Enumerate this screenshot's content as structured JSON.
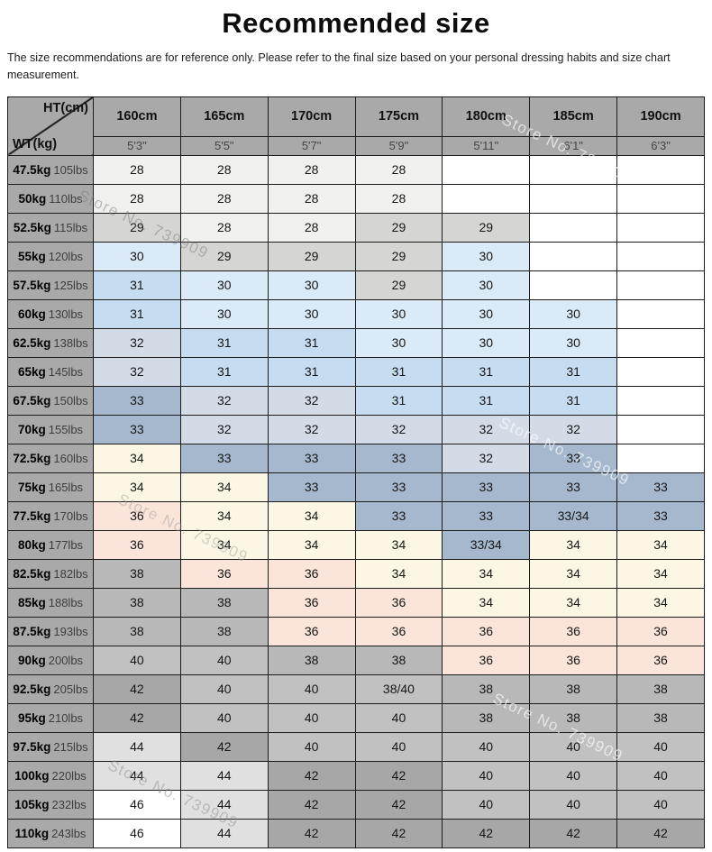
{
  "chart_data": {
    "type": "table",
    "title": "Recommended size",
    "note": "The size recommendations are for reference only. Please refer to the final size based on your personal dressing habits and size chart measurement.",
    "watermark": "Store No. 739909",
    "corner": {
      "top_label": "HT(cm)",
      "bottom_label": "WT(kg)"
    },
    "height_cols": [
      {
        "cm": "160cm",
        "ft": "5'3\""
      },
      {
        "cm": "165cm",
        "ft": "5'5\""
      },
      {
        "cm": "170cm",
        "ft": "5'7\""
      },
      {
        "cm": "175cm",
        "ft": "5'9\""
      },
      {
        "cm": "180cm",
        "ft": "5'11\""
      },
      {
        "cm": "185cm",
        "ft": "6'1\""
      },
      {
        "cm": "190cm",
        "ft": "6'3\""
      }
    ],
    "rows": [
      {
        "kg": "47.5kg",
        "lbs": "105lbs",
        "sizes": [
          "28",
          "28",
          "28",
          "28",
          "",
          "",
          ""
        ]
      },
      {
        "kg": "50kg",
        "lbs": "110lbs",
        "sizes": [
          "28",
          "28",
          "28",
          "28",
          "",
          "",
          ""
        ]
      },
      {
        "kg": "52.5kg",
        "lbs": "115lbs",
        "sizes": [
          "29",
          "28",
          "28",
          "29",
          "29",
          "",
          ""
        ]
      },
      {
        "kg": "55kg",
        "lbs": "120lbs",
        "sizes": [
          "30",
          "29",
          "29",
          "29",
          "30",
          "",
          ""
        ]
      },
      {
        "kg": "57.5kg",
        "lbs": "125lbs",
        "sizes": [
          "31",
          "30",
          "30",
          "29",
          "30",
          "",
          ""
        ]
      },
      {
        "kg": "60kg",
        "lbs": "130lbs",
        "sizes": [
          "31",
          "30",
          "30",
          "30",
          "30",
          "30",
          ""
        ]
      },
      {
        "kg": "62.5kg",
        "lbs": "138lbs",
        "sizes": [
          "32",
          "31",
          "31",
          "30",
          "30",
          "30",
          ""
        ]
      },
      {
        "kg": "65kg",
        "lbs": "145lbs",
        "sizes": [
          "32",
          "31",
          "31",
          "31",
          "31",
          "31",
          ""
        ]
      },
      {
        "kg": "67.5kg",
        "lbs": "150lbs",
        "sizes": [
          "33",
          "32",
          "32",
          "31",
          "31",
          "31",
          ""
        ]
      },
      {
        "kg": "70kg",
        "lbs": "155lbs",
        "sizes": [
          "33",
          "32",
          "32",
          "32",
          "32",
          "32",
          ""
        ]
      },
      {
        "kg": "72.5kg",
        "lbs": "160lbs",
        "sizes": [
          "34",
          "33",
          "33",
          "33",
          "32",
          "33",
          ""
        ]
      },
      {
        "kg": "75kg",
        "lbs": "165lbs",
        "sizes": [
          "34",
          "34",
          "33",
          "33",
          "33",
          "33",
          "33"
        ]
      },
      {
        "kg": "77.5kg",
        "lbs": "170lbs",
        "sizes": [
          "36",
          "34",
          "34",
          "33",
          "33",
          "33/34",
          "33"
        ]
      },
      {
        "kg": "80kg",
        "lbs": "177lbs",
        "sizes": [
          "36",
          "34",
          "34",
          "34",
          "33/34",
          "34",
          "34"
        ]
      },
      {
        "kg": "82.5kg",
        "lbs": "182lbs",
        "sizes": [
          "38",
          "36",
          "36",
          "34",
          "34",
          "34",
          "34"
        ]
      },
      {
        "kg": "85kg",
        "lbs": "188lbs",
        "sizes": [
          "38",
          "38",
          "36",
          "36",
          "34",
          "34",
          "34"
        ]
      },
      {
        "kg": "87.5kg",
        "lbs": "193lbs",
        "sizes": [
          "38",
          "38",
          "36",
          "36",
          "36",
          "36",
          "36"
        ]
      },
      {
        "kg": "90kg",
        "lbs": "200lbs",
        "sizes": [
          "40",
          "40",
          "38",
          "38",
          "36",
          "36",
          "36"
        ]
      },
      {
        "kg": "92.5kg",
        "lbs": "205lbs",
        "sizes": [
          "42",
          "40",
          "40",
          "38/40",
          "38",
          "38",
          "38"
        ]
      },
      {
        "kg": "95kg",
        "lbs": "210lbs",
        "sizes": [
          "42",
          "40",
          "40",
          "40",
          "38",
          "38",
          "38"
        ]
      },
      {
        "kg": "97.5kg",
        "lbs": "215lbs",
        "sizes": [
          "44",
          "42",
          "40",
          "40",
          "40",
          "40",
          "40"
        ]
      },
      {
        "kg": "100kg",
        "lbs": "220lbs",
        "sizes": [
          "44",
          "44",
          "42",
          "42",
          "40",
          "40",
          "40"
        ]
      },
      {
        "kg": "105kg",
        "lbs": "232lbs",
        "sizes": [
          "46",
          "44",
          "42",
          "42",
          "40",
          "40",
          "40"
        ]
      },
      {
        "kg": "110kg",
        "lbs": "243lbs",
        "sizes": [
          "46",
          "44",
          "42",
          "42",
          "42",
          "42",
          "42"
        ]
      }
    ],
    "palette": {
      "28": "#f1f1ef",
      "29": "#d5d5d3",
      "30": "#dbeaf7",
      "31": "#c6dcf0",
      "32": "#d3dbe7",
      "33": "#a6b8ce",
      "33/34": "#a6b8ce",
      "34": "#fbf7e4",
      "36": "#fbe4da",
      "38": "#b8b8b8",
      "38/40": "#c1c1c1",
      "40": "#c1c1c1",
      "42": "#a7a7a7",
      "44": "#e0e0e0",
      "46": "#ffffff",
      "": "#ffffff"
    },
    "header_bg": "#a9a9a9",
    "border_color": "#1c1c1c"
  }
}
